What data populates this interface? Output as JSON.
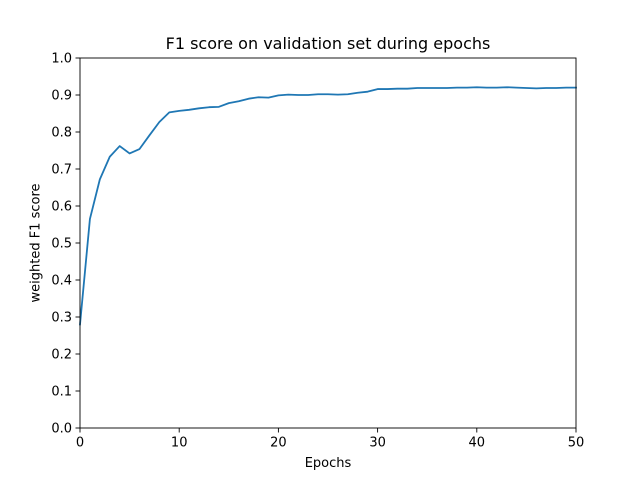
{
  "chart_data": {
    "type": "line",
    "title": "F1 score on validation set during epochs",
    "xlabel": "Epochs",
    "ylabel": "weighted F1 score",
    "xlim": [
      0,
      50
    ],
    "ylim": [
      0.0,
      1.0
    ],
    "x_ticks": [
      "0",
      "10",
      "20",
      "30",
      "40",
      "50"
    ],
    "y_ticks": [
      "0.0",
      "0.1",
      "0.2",
      "0.3",
      "0.4",
      "0.5",
      "0.6",
      "0.7",
      "0.8",
      "0.9",
      "1.0"
    ],
    "grid": false,
    "colors": {
      "line": "#1f77b4"
    },
    "series": [
      {
        "x": [
          0,
          1,
          2,
          3,
          4,
          5,
          6,
          7,
          8,
          9,
          10,
          11,
          12,
          13,
          14,
          15,
          16,
          17,
          18,
          19,
          20,
          21,
          22,
          23,
          24,
          25,
          26,
          27,
          28,
          29,
          30,
          31,
          32,
          33,
          34,
          35,
          36,
          37,
          38,
          39,
          40,
          41,
          42,
          43,
          44,
          45,
          46,
          47,
          48,
          49,
          50
        ],
        "y": [
          0.28,
          0.565,
          0.672,
          0.733,
          0.762,
          0.742,
          0.754,
          0.791,
          0.827,
          0.853,
          0.857,
          0.86,
          0.864,
          0.867,
          0.868,
          0.878,
          0.883,
          0.89,
          0.894,
          0.893,
          0.899,
          0.901,
          0.9,
          0.9,
          0.902,
          0.902,
          0.901,
          0.902,
          0.906,
          0.909,
          0.916,
          0.916,
          0.917,
          0.917,
          0.919,
          0.919,
          0.919,
          0.919,
          0.92,
          0.92,
          0.921,
          0.92,
          0.92,
          0.921,
          0.92,
          0.919,
          0.918,
          0.919,
          0.919,
          0.92,
          0.92
        ]
      }
    ]
  }
}
